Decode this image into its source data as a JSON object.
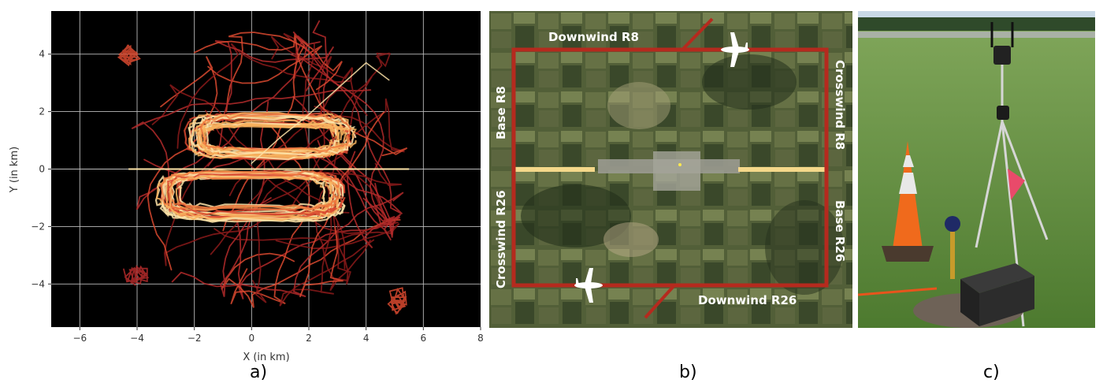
{
  "captions": {
    "a": "a)",
    "b": "b)",
    "c": "c)"
  },
  "chart_data": {
    "type": "scatter",
    "title": "",
    "xlabel": "X (in km)",
    "ylabel": "Y (in km)",
    "xlim": [
      -7,
      8
    ],
    "ylim": [
      -5.5,
      5.5
    ],
    "xticks": [
      -6,
      -4,
      -2,
      0,
      2,
      4,
      6,
      8
    ],
    "yticks": [
      -4,
      -2,
      0,
      2,
      4
    ],
    "xtick_labels": [
      "−6",
      "−4",
      "−2",
      "0",
      "2",
      "4",
      "6",
      "8"
    ],
    "ytick_labels": [
      "−4",
      "−2",
      "0",
      "2",
      "4"
    ],
    "grid": true,
    "background": "#000000",
    "colormap": [
      "#8b1a1a",
      "#b32a2a",
      "#d9492f",
      "#f07a3f",
      "#f7b15e",
      "#fde3a8"
    ],
    "traffic_pattern": {
      "runway": {
        "x": [
          -4.3,
          5.5
        ],
        "y": 0
      },
      "upper_circuit": {
        "x": [
          -2.3,
          3.6
        ],
        "y": [
          0.4,
          1.5
        ]
      },
      "lower_circuit": {
        "x": [
          -3.3,
          3.3
        ],
        "y": [
          -1.3,
          -0.1
        ]
      },
      "outer_extent": {
        "x": [
          -4.4,
          5.6
        ],
        "y": [
          -4.7,
          5.0
        ]
      }
    }
  },
  "map": {
    "labels": {
      "downwind_r8": "Downwind R8",
      "downwind_r26": "Downwind R26",
      "base_r8": "Base R8",
      "base_r26": "Base R26",
      "crosswind_r8": "Crosswind R8",
      "crosswind_r26": "Crosswind R26"
    },
    "colors": {
      "pattern": "#b52a1e",
      "runway": "#f4d88a"
    }
  }
}
